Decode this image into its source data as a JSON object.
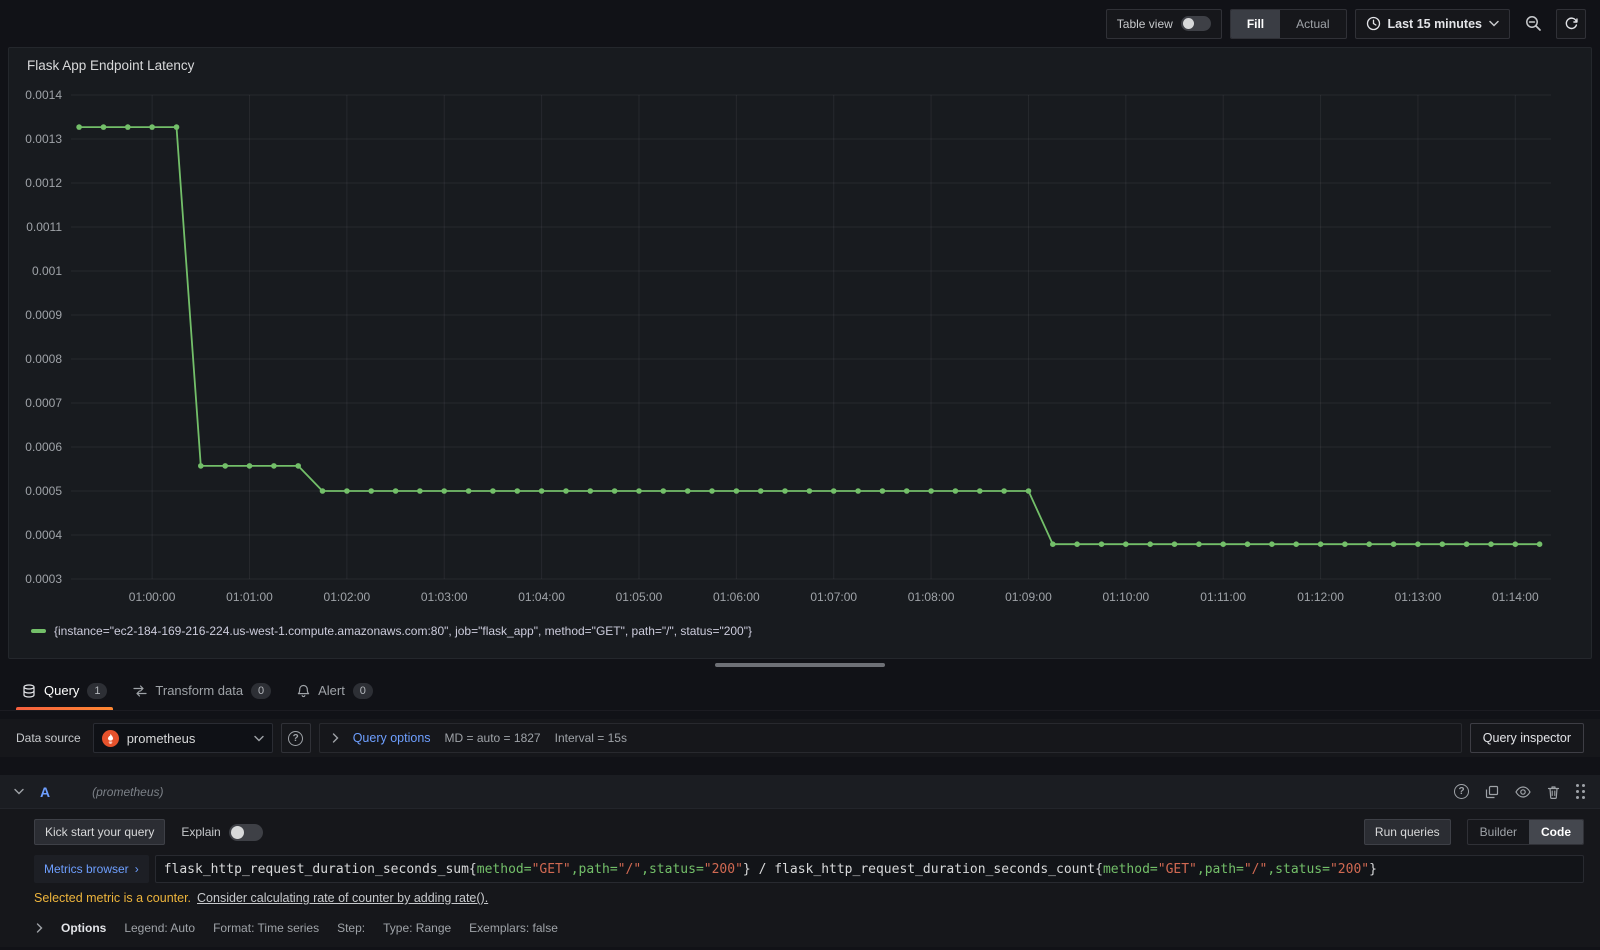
{
  "toolbar": {
    "table_view_label": "Table view",
    "fill_label": "Fill",
    "actual_label": "Actual",
    "time_range_label": "Last 15 minutes"
  },
  "panel": {
    "title": "Flask App Endpoint Latency",
    "legend_text": "{instance=\"ec2-184-169-216-224.us-west-1.compute.amazonaws.com:80\", job=\"flask_app\", method=\"GET\", path=\"/\", status=\"200\"}"
  },
  "chart_data": {
    "type": "line",
    "title": "Flask App Endpoint Latency",
    "xlim": [
      "00:59:10",
      "01:14:22"
    ],
    "ylim": [
      0.0003,
      0.0014
    ],
    "x_ticks": [
      "01:00:00",
      "01:01:00",
      "01:02:00",
      "01:03:00",
      "01:04:00",
      "01:05:00",
      "01:06:00",
      "01:07:00",
      "01:08:00",
      "01:09:00",
      "01:10:00",
      "01:11:00",
      "01:12:00",
      "01:13:00",
      "01:14:00"
    ],
    "y_ticks": [
      0.0003,
      0.0004,
      0.0005,
      0.0006,
      0.0007,
      0.0008,
      0.0009,
      0.001,
      0.0011,
      0.0012,
      0.0013,
      0.0014
    ],
    "grid": true,
    "legend_position": "bottom",
    "step_seconds": 15,
    "series": [
      {
        "name": "{instance=\"ec2-184-169-216-224.us-west-1.compute.amazonaws.com:80\", job=\"flask_app\", method=\"GET\", path=\"/\", status=\"200\"}",
        "color": "#73bf69",
        "segments": [
          {
            "from": "00:59:15",
            "to": "01:00:15",
            "value": 0.001327
          },
          {
            "from": "01:00:30",
            "to": "01:01:30",
            "value": 0.000557
          },
          {
            "from": "01:01:45",
            "to": "01:09:00",
            "value": 0.0005
          },
          {
            "from": "01:09:15",
            "to": "01:14:15",
            "value": 0.000379
          }
        ]
      }
    ]
  },
  "tabs": [
    {
      "label": "Query",
      "badge": "1"
    },
    {
      "label": "Transform data",
      "badge": "0"
    },
    {
      "label": "Alert",
      "badge": "0"
    }
  ],
  "datasource": {
    "label": "Data source",
    "value": "prometheus",
    "query_options_label": "Query options",
    "md_text": "MD = auto = 1827",
    "interval_text": "Interval = 15s",
    "query_inspector_label": "Query inspector"
  },
  "query": {
    "ref_id": "A",
    "datasource_hint": "(prometheus)",
    "kick_start_label": "Kick start your query",
    "explain_label": "Explain",
    "run_queries_label": "Run queries",
    "builder_label": "Builder",
    "code_label": "Code",
    "metrics_browser_label": "Metrics browser",
    "expression_parts": [
      {
        "t": "plain",
        "s": "flask_http_request_duration_seconds_sum{"
      },
      {
        "t": "label",
        "s": "method="
      },
      {
        "t": "string",
        "s": "\"GET\""
      },
      {
        "t": "label",
        "s": ",path="
      },
      {
        "t": "string",
        "s": "\"/\""
      },
      {
        "t": "label",
        "s": ",status="
      },
      {
        "t": "string",
        "s": "\"200\""
      },
      {
        "t": "plain",
        "s": "} / flask_http_request_duration_seconds_count{"
      },
      {
        "t": "label",
        "s": "method="
      },
      {
        "t": "string",
        "s": "\"GET\""
      },
      {
        "t": "label",
        "s": ",path="
      },
      {
        "t": "string",
        "s": "\"/\""
      },
      {
        "t": "label",
        "s": ",status="
      },
      {
        "t": "string",
        "s": "\"200\""
      },
      {
        "t": "plain",
        "s": "}"
      }
    ],
    "warning_text": "Selected metric is a counter.",
    "warning_link": "Consider calculating rate of counter by adding rate().",
    "options_label": "Options",
    "options_summary": [
      "Legend: Auto",
      "Format: Time series",
      "Step:",
      "Type: Range",
      "Exemplars: false"
    ]
  },
  "glyphs": {
    "question_mark": "?",
    "chevron_right_small": "›"
  },
  "colors": {
    "series_green": "#73bf69",
    "accent_orange": "#ff780a",
    "link_blue": "#6e9fff",
    "warning_yellow": "#edb43c",
    "prometheus_orange": "#e6522c"
  }
}
